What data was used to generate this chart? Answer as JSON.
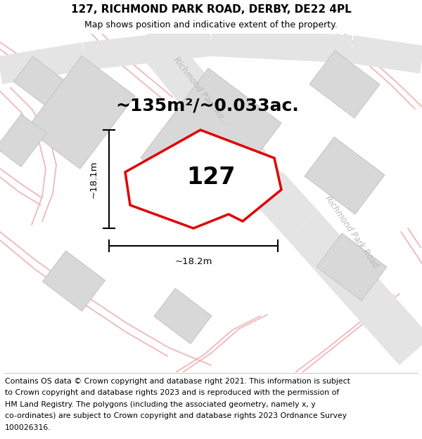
{
  "title_line1": "127, RICHMOND PARK ROAD, DERBY, DE22 4PL",
  "title_line2": "Map shows position and indicative extent of the property.",
  "area_label": "~135m²/~0.033ac.",
  "plot_number": "127",
  "dim_width": "~18.2m",
  "dim_height": "~18.1m",
  "bg_color": "#f2f2f2",
  "road_band_color": "#e4e4e4",
  "building_color": "#d8d8d8",
  "building_edge": "#c4c4c4",
  "road_label_color": "#b8b8b8",
  "plot_fill": "#ffffff",
  "plot_stroke": "#e00000",
  "pink_color": "#f0b8b8",
  "title_fontsize": 11,
  "subtitle_fontsize": 9,
  "footer_fontsize": 7.8,
  "area_fontsize": 18,
  "plot_num_fontsize": 24,
  "footer_lines": [
    "Contains OS data © Crown copyright and database right 2021. This information is subject",
    "to Crown copyright and database rights 2023 and is reproduced with the permission of",
    "HM Land Registry. The polygons (including the associated geometry, namely x, y",
    "co-ordinates) are subject to Crown copyright and database rights 2023 Ordnance Survey",
    "100026316."
  ]
}
